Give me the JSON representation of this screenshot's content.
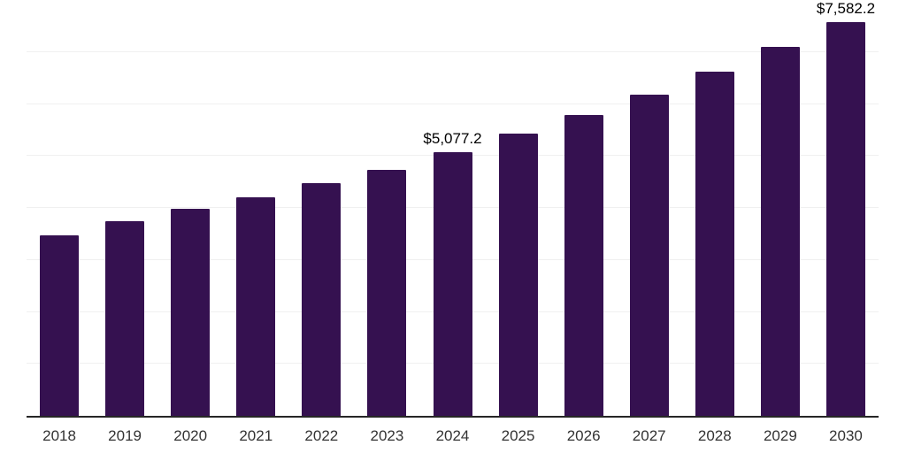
{
  "chart_data": {
    "type": "bar",
    "title": "",
    "xlabel": "",
    "ylabel": "",
    "categories": [
      "2018",
      "2019",
      "2020",
      "2021",
      "2022",
      "2023",
      "2024",
      "2025",
      "2026",
      "2027",
      "2028",
      "2029",
      "2030"
    ],
    "values": [
      3480,
      3750,
      3975,
      4210,
      4485,
      4740,
      5077.2,
      5425,
      5785,
      6175,
      6615,
      7090,
      7582.2
    ],
    "data_labels": [
      "",
      "",
      "",
      "",
      "",
      "",
      "$5,077.2",
      "",
      "",
      "",
      "",
      "",
      "$7,582.2"
    ],
    "ylim": [
      0,
      8000
    ],
    "grid_step": 1000,
    "grid": true,
    "legend": false,
    "bar_color": "#351150",
    "grid_color": "#f0f0f0",
    "axis_color": "#262626",
    "data_label_color": "#000000",
    "tick_label_color": "#333333"
  }
}
